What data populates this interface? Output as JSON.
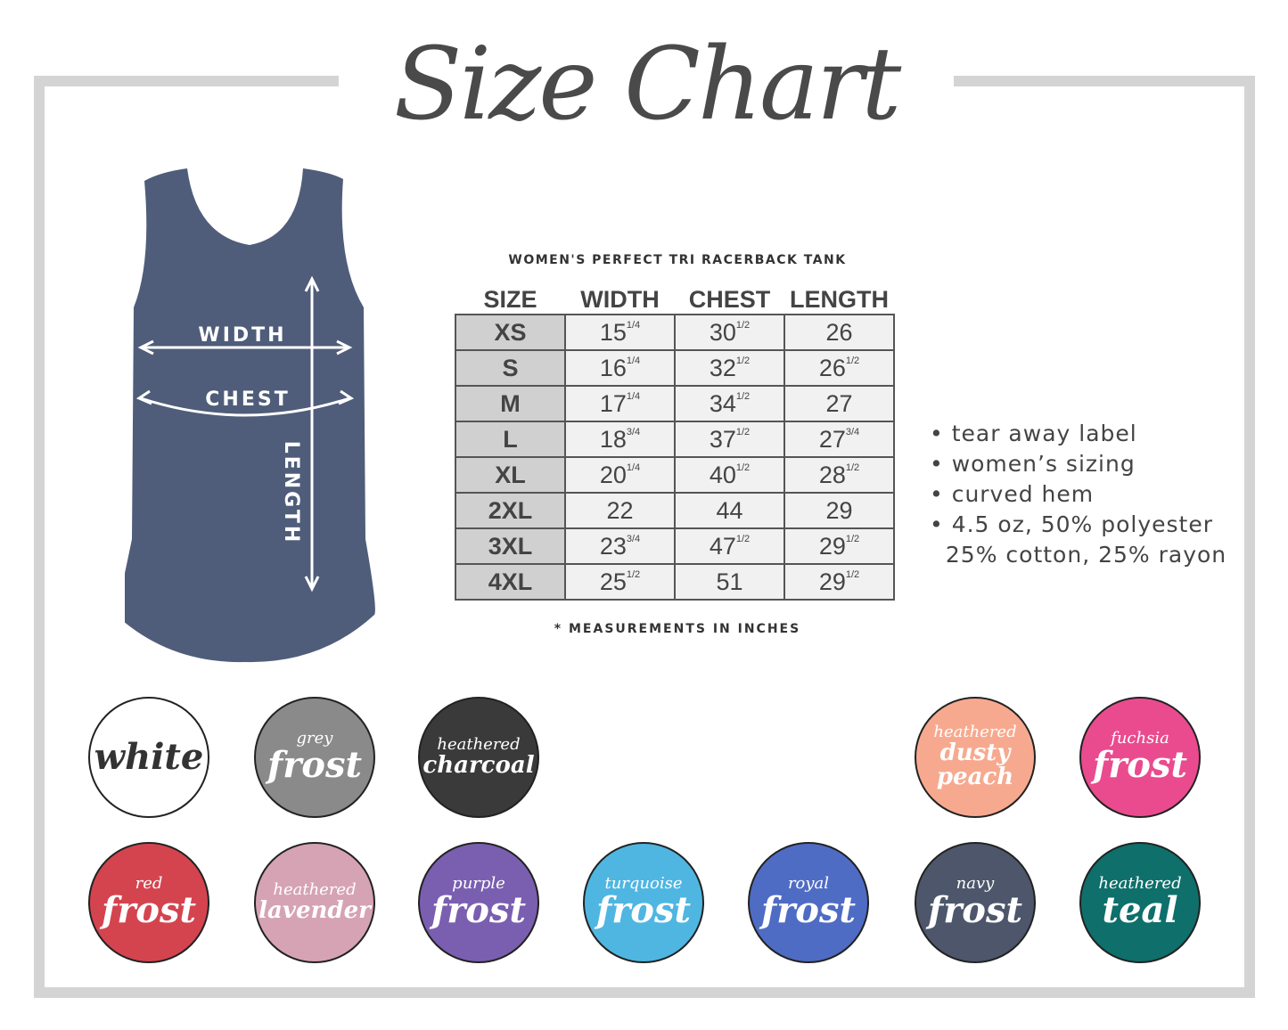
{
  "title": "Size Chart",
  "subtitle": "WOMEN'S PERFECT TRI RACERBACK TANK",
  "diagram": {
    "width": "WIDTH",
    "chest": "CHEST",
    "length": "LENGTH",
    "tank_color": "#4f5d7a"
  },
  "table": {
    "headers": [
      "SIZE",
      "WIDTH",
      "CHEST",
      "LENGTH"
    ],
    "rows": [
      {
        "size": "XS",
        "width": "15",
        "width_frac": "1/4",
        "chest": "30",
        "chest_frac": "1/2",
        "length": "26",
        "length_frac": ""
      },
      {
        "size": "S",
        "width": "16",
        "width_frac": "1/4",
        "chest": "32",
        "chest_frac": "1/2",
        "length": "26",
        "length_frac": "1/2"
      },
      {
        "size": "M",
        "width": "17",
        "width_frac": "1/4",
        "chest": "34",
        "chest_frac": "1/2",
        "length": "27",
        "length_frac": ""
      },
      {
        "size": "L",
        "width": "18",
        "width_frac": "3/4",
        "chest": "37",
        "chest_frac": "1/2",
        "length": "27",
        "length_frac": "3/4"
      },
      {
        "size": "XL",
        "width": "20",
        "width_frac": "1/4",
        "chest": "40",
        "chest_frac": "1/2",
        "length": "28",
        "length_frac": "1/2"
      },
      {
        "size": "2XL",
        "width": "22",
        "width_frac": "",
        "chest": "44",
        "chest_frac": "",
        "length": "29",
        "length_frac": ""
      },
      {
        "size": "3XL",
        "width": "23",
        "width_frac": "3/4",
        "chest": "47",
        "chest_frac": "1/2",
        "length": "29",
        "length_frac": "1/2"
      },
      {
        "size": "4XL",
        "width": "25",
        "width_frac": "1/2",
        "chest": "51",
        "chest_frac": "",
        "length": "29",
        "length_frac": "1/2"
      }
    ]
  },
  "note": "* MEASUREMENTS IN INCHES",
  "features": [
    "• tear away label",
    "• women’s sizing",
    "• curved hem",
    "• 4.5 oz, 50% polyester",
    "  25% cotton, 25% rayon"
  ],
  "colors": [
    {
      "top": "",
      "main": "white",
      "bg": "#ffffff",
      "fg": "#333333"
    },
    {
      "top": "grey",
      "main": "frost",
      "bg": "#8a8a8a",
      "fg": "#ffffff"
    },
    {
      "top": "heathered",
      "main": "charcoal",
      "bg": "#3a3a3a",
      "fg": "#ffffff"
    },
    {
      "top": "",
      "main": "",
      "bg": "#ffffff",
      "fg": "#ffffff"
    },
    {
      "top": "",
      "main": "",
      "bg": "#ffffff",
      "fg": "#ffffff"
    },
    {
      "top": "heathered",
      "main": "dusty peach",
      "bg": "#f7a98f",
      "fg": "#ffffff"
    },
    {
      "top": "fuchsia",
      "main": "frost",
      "bg": "#ea4b8e",
      "fg": "#ffffff"
    },
    {
      "top": "red",
      "main": "frost",
      "bg": "#d4444f",
      "fg": "#ffffff"
    },
    {
      "top": "heathered",
      "main": "lavender",
      "bg": "#d6a3b4",
      "fg": "#ffffff"
    },
    {
      "top": "purple",
      "main": "frost",
      "bg": "#7a5fb0",
      "fg": "#ffffff"
    },
    {
      "top": "turquoise",
      "main": "frost",
      "bg": "#4fb6e2",
      "fg": "#ffffff"
    },
    {
      "top": "royal",
      "main": "frost",
      "bg": "#4f6cc4",
      "fg": "#ffffff"
    },
    {
      "top": "navy",
      "main": "frost",
      "bg": "#4d566b",
      "fg": "#ffffff"
    },
    {
      "top": "heathered",
      "main": "teal",
      "bg": "#0e6f6b",
      "fg": "#ffffff"
    }
  ]
}
